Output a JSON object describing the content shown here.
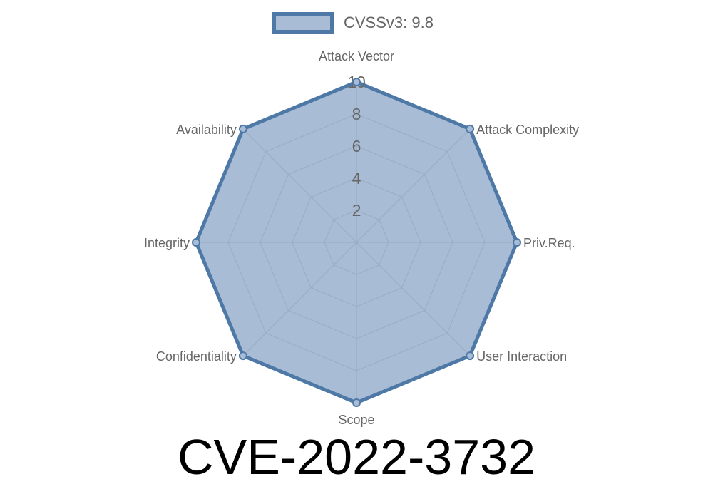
{
  "legend": {
    "label": "CVSSv3: 9.8"
  },
  "title": "CVE-2022-3732",
  "chart_data": {
    "type": "radar",
    "categories": [
      "Attack Vector",
      "Attack Complexity",
      "Priv.Req.",
      "User Interaction",
      "Scope",
      "Confidentiality",
      "Integrity",
      "Availability"
    ],
    "series": [
      {
        "name": "CVSSv3: 9.8",
        "values": [
          10,
          10,
          10,
          10,
          10,
          10,
          10,
          10
        ]
      }
    ],
    "rlim": [
      0,
      10
    ],
    "ticks": [
      "2",
      "4",
      "6",
      "8",
      "10"
    ],
    "grid": true,
    "legend_position": "top",
    "colors": {
      "fill": "#a8bcd5",
      "stroke": "#4e79a7",
      "grid": "#98a8bc",
      "label": "#666666"
    }
  }
}
